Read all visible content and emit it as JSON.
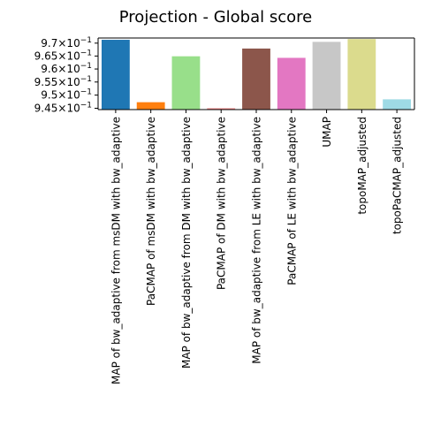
{
  "chart_data": {
    "type": "bar",
    "title": "Projection - Global score",
    "xlabel": "",
    "ylabel": "",
    "yscale": "log",
    "ylim": [
      0.9445,
      0.972
    ],
    "grid": false,
    "categories": [
      "MAP of bw_adaptive from msDM with bw_adaptive",
      "PaCMAP of msDM with bw_adaptive",
      "MAP of bw_adaptive from DM with bw_adaptive",
      "PaCMAP of DM with bw_adaptive",
      "MAP of bw_adaptive from LE with bw_adaptive",
      "PaCMAP of LE with bw_adaptive",
      "UMAP",
      "topoMAP_adjusted",
      "topoPaCMAP_adjusted"
    ],
    "values": [
      0.9713,
      0.9473,
      0.9649,
      0.945,
      0.9679,
      0.9643,
      0.9705,
      0.9716,
      0.9484
    ],
    "colors": [
      "#1f77b4",
      "#ff7f0e",
      "#98df8a",
      "#f08080",
      "#8c564b",
      "#e377c2",
      "#c7c7c7",
      "#dbdb8d",
      "#9edae5"
    ],
    "yticks": [
      {
        "value": 0.945,
        "base": "9.45",
        "exp": "−1"
      },
      {
        "value": 0.95,
        "base": "9.5",
        "exp": "−1"
      },
      {
        "value": 0.955,
        "base": "9.55",
        "exp": "−1"
      },
      {
        "value": 0.96,
        "base": "9.6",
        "exp": "−1"
      },
      {
        "value": 0.965,
        "base": "9.65",
        "exp": "−1"
      },
      {
        "value": 0.97,
        "base": "9.7",
        "exp": "−1"
      }
    ]
  }
}
